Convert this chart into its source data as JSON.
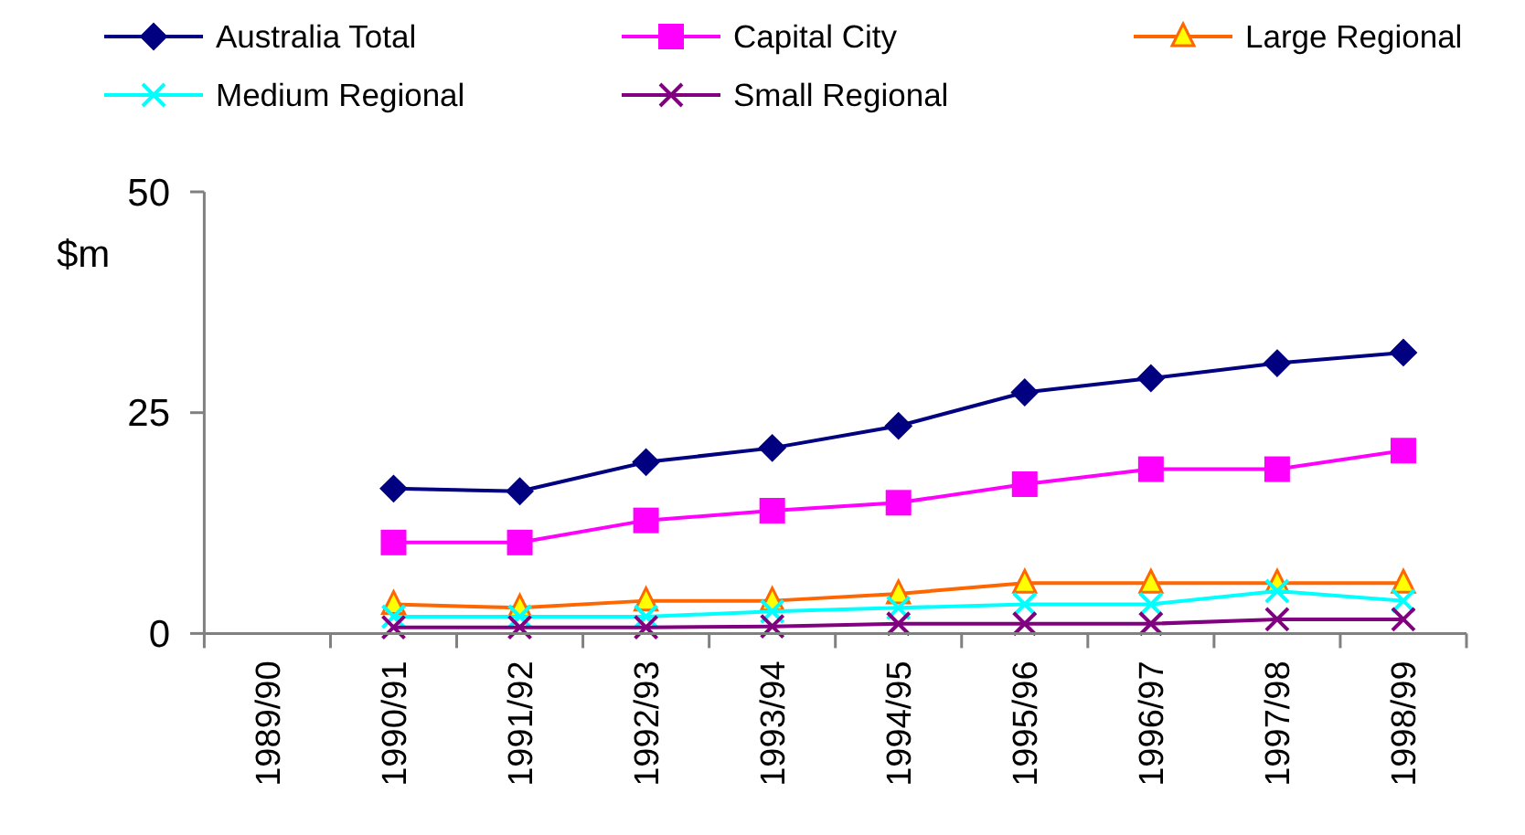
{
  "chart_data": {
    "type": "line",
    "categories": [
      "1989/90",
      "1990/91",
      "1991/92",
      "1992/93",
      "1993/94",
      "1994/95",
      "1995/96",
      "1996/97",
      "1997/98",
      "1998/99"
    ],
    "series": [
      {
        "name": "Australia Total",
        "color": "#000080",
        "marker": "diamond",
        "values": [
          null,
          16.4,
          16.1,
          19.4,
          21.0,
          23.5,
          27.3,
          28.9,
          30.6,
          31.8
        ]
      },
      {
        "name": "Capital City",
        "color": "#ff00ff",
        "marker": "square",
        "values": [
          null,
          10.3,
          10.3,
          12.8,
          13.9,
          14.8,
          16.9,
          18.6,
          18.6,
          20.7
        ]
      },
      {
        "name": "Large Regional",
        "color": "#ff6600",
        "marker": "triangle",
        "values": [
          null,
          3.3,
          2.9,
          3.7,
          3.7,
          4.5,
          5.7,
          5.7,
          5.7,
          5.7
        ]
      },
      {
        "name": "Medium Regional",
        "color": "#00ffff",
        "marker": "cross",
        "values": [
          null,
          1.9,
          1.9,
          1.9,
          2.5,
          2.9,
          3.3,
          3.3,
          4.8,
          3.7
        ]
      },
      {
        "name": "Small Regional",
        "color": "#800080",
        "marker": "cross",
        "values": [
          null,
          0.7,
          0.7,
          0.7,
          0.8,
          1.1,
          1.1,
          1.1,
          1.6,
          1.6
        ]
      }
    ],
    "ylabel": "$m",
    "ylim": [
      0,
      50
    ],
    "yticks": [
      0,
      25,
      50
    ],
    "grid": false,
    "legend": "top",
    "line_style": "solid"
  }
}
